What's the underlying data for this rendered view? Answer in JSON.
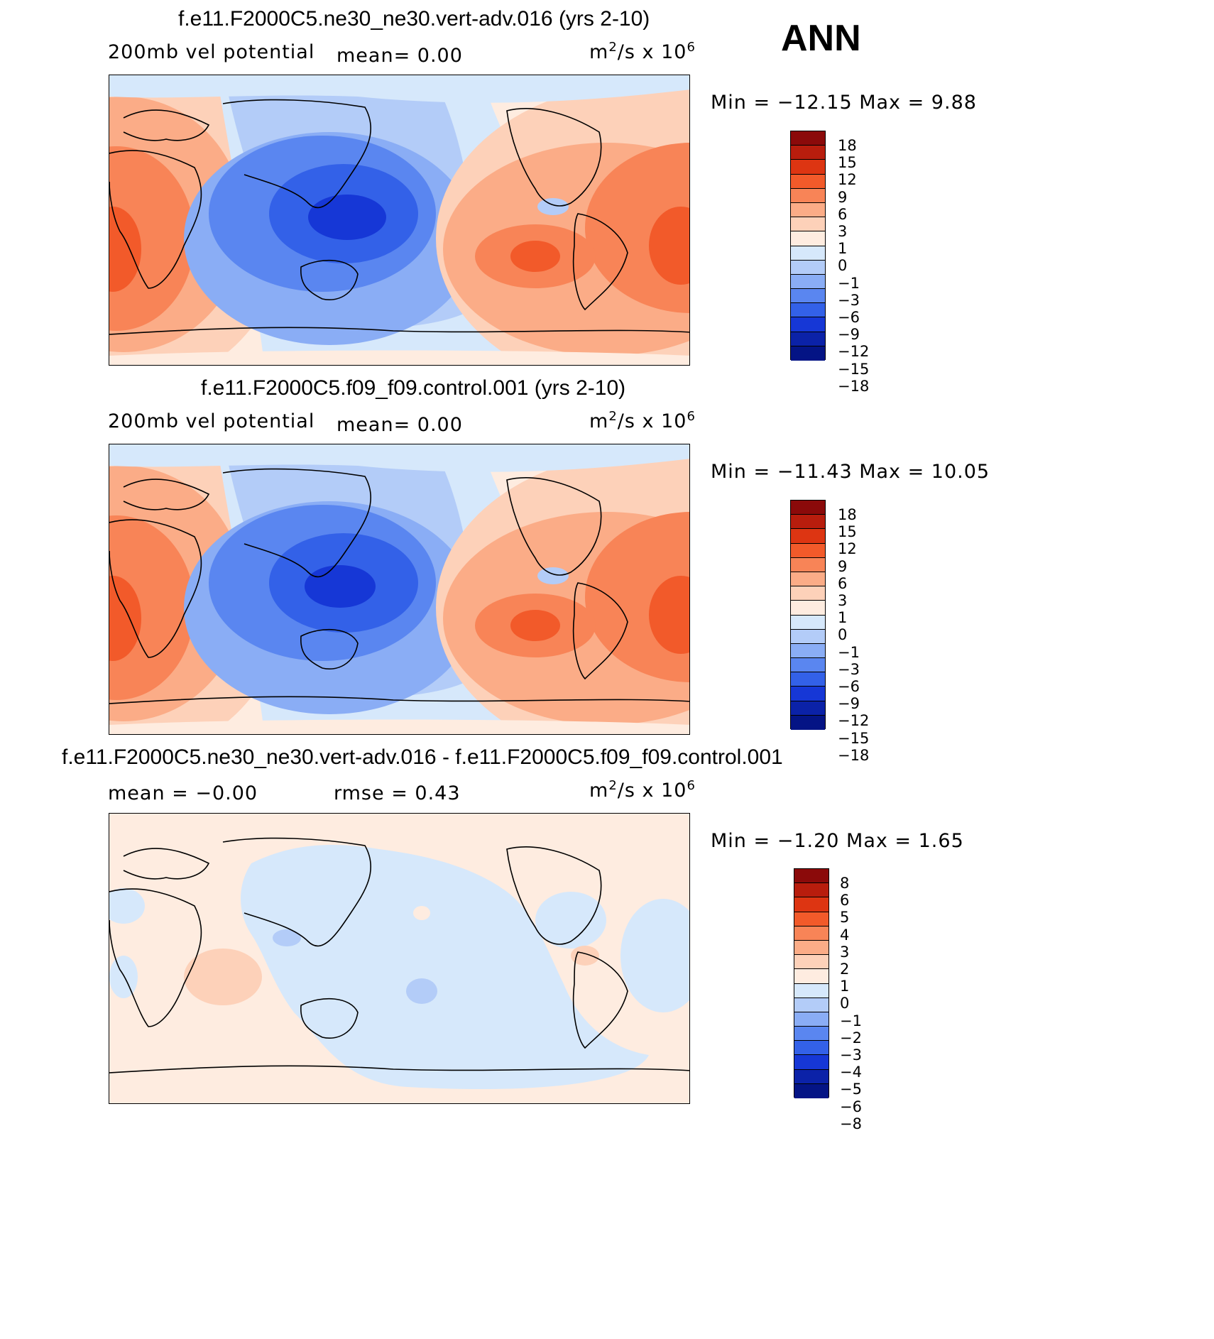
{
  "season": "ANN",
  "units_main": "m",
  "units_sq": "2",
  "units_tail": "/s  x  10",
  "units_exp": "6",
  "panels": [
    {
      "title": "f.e11.F2000C5.ne30_ne30.vert-adv.016 (yrs 2-10)",
      "left_label": "200mb vel potential",
      "center_label": "mean=    0.00",
      "minmax": "Min  =  −12.15  Max  =     9.88",
      "levels": [
        "18",
        "15",
        "12",
        "9",
        "6",
        "3",
        "1",
        "0",
        "−1",
        "−3",
        "−6",
        "−9",
        "−12",
        "−15",
        "−18"
      ]
    },
    {
      "title": "f.e11.F2000C5.f09_f09.control.001 (yrs 2-10)",
      "left_label": "200mb vel potential",
      "center_label": "mean=    0.00",
      "minmax": "Min  =  −11.43  Max  =   10.05",
      "levels": [
        "18",
        "15",
        "12",
        "9",
        "6",
        "3",
        "1",
        "0",
        "−1",
        "−3",
        "−6",
        "−9",
        "−12",
        "−15",
        "−18"
      ]
    },
    {
      "title": "f.e11.F2000C5.ne30_ne30.vert-adv.016 - f.e11.F2000C5.f09_f09.control.001",
      "left_label": "mean  =   −0.00",
      "center_label": "rmse  =     0.43",
      "minmax": "Min  =    −1.20  Max  =      1.65",
      "levels": [
        "8",
        "6",
        "5",
        "4",
        "3",
        "2",
        "1",
        "0",
        "−1",
        "−2",
        "−3",
        "−4",
        "−5",
        "−6",
        "−8"
      ]
    }
  ],
  "colors": [
    "#8b0a0a",
    "#b81d0d",
    "#dd3512",
    "#f25a2a",
    "#f88457",
    "#fbac87",
    "#fdd1b9",
    "#feece0",
    "#d6e8fb",
    "#b3ccf8",
    "#8aadf5",
    "#5a86f0",
    "#3361e8",
    "#1637d6",
    "#0b22a8",
    "#041485"
  ]
}
